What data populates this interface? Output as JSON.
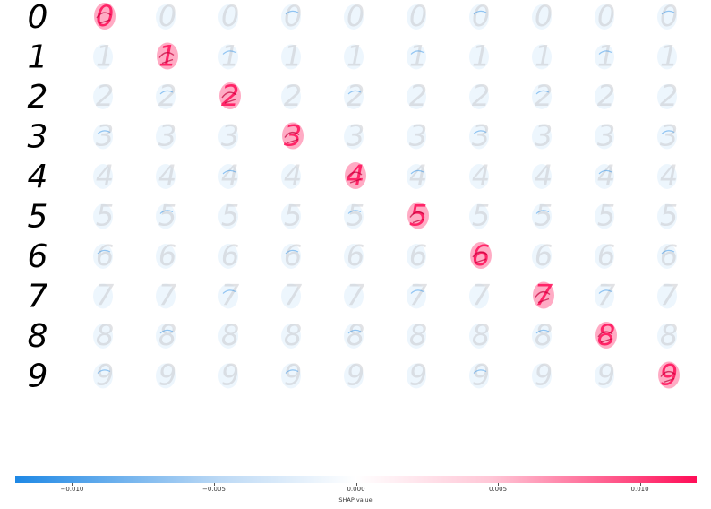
{
  "digits": [
    "0",
    "1",
    "2",
    "3",
    "4",
    "5",
    "6",
    "7",
    "8",
    "9"
  ],
  "columns": 10,
  "colors": {
    "positive": "#ff0d57",
    "negative": "#1e88e5",
    "gray": "#c9ccd1",
    "ink": "#000000"
  },
  "colorbar": {
    "min": -0.012,
    "max": 0.012,
    "ticks": [
      {
        "value": -0.01,
        "label": "−0.010"
      },
      {
        "value": -0.005,
        "label": "−0.005"
      },
      {
        "value": 0.0,
        "label": "0.000"
      },
      {
        "value": 0.005,
        "label": "0.005"
      },
      {
        "value": 0.01,
        "label": "0.010"
      }
    ],
    "title": "SHAP value"
  }
}
